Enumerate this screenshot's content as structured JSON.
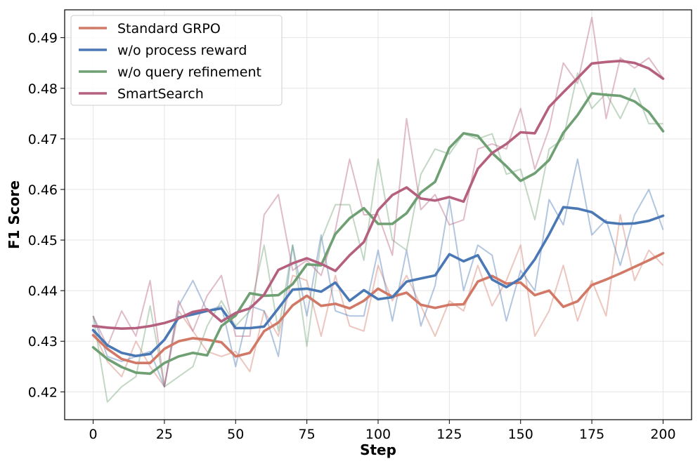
{
  "chart_data": {
    "type": "line",
    "title": "",
    "xlabel": "Step",
    "ylabel": "F1 Score",
    "xlim": [
      -10,
      210
    ],
    "ylim": [
      0.4145,
      0.4955
    ],
    "xticks": [
      0,
      25,
      50,
      75,
      100,
      125,
      150,
      175,
      200
    ],
    "yticks": [
      0.42,
      0.43,
      0.44,
      0.45,
      0.46,
      0.47,
      0.48,
      0.49
    ],
    "ytick_labels": [
      "0.42",
      "0.43",
      "0.44",
      "0.45",
      "0.46",
      "0.47",
      "0.48",
      "0.49"
    ],
    "grid": true,
    "legend_position": "top-left",
    "x": [
      0,
      5,
      10,
      15,
      20,
      25,
      30,
      35,
      40,
      45,
      50,
      55,
      60,
      65,
      70,
      75,
      80,
      85,
      90,
      95,
      100,
      105,
      110,
      115,
      120,
      125,
      130,
      135,
      140,
      145,
      150,
      155,
      160,
      165,
      170,
      175,
      180,
      185,
      190,
      195,
      200
    ],
    "series": [
      {
        "name": "Standard GRPO",
        "color": "#d17866",
        "raw": [
          0.432,
          0.426,
          0.423,
          0.43,
          0.425,
          0.421,
          0.436,
          0.432,
          0.428,
          0.427,
          0.428,
          0.424,
          0.436,
          0.431,
          0.443,
          0.442,
          0.431,
          0.443,
          0.433,
          0.432,
          0.445,
          0.438,
          0.443,
          0.437,
          0.431,
          0.438,
          0.436,
          0.445,
          0.437,
          0.442,
          0.449,
          0.431,
          0.436,
          0.445,
          0.434,
          0.442,
          0.435,
          0.455,
          0.442,
          0.448,
          0.445
        ],
        "smooth": [
          0.4312,
          0.4285,
          0.4265,
          0.4257,
          0.4257,
          0.4285,
          0.43,
          0.4306,
          0.4303,
          0.4298,
          0.427,
          0.4277,
          0.432,
          0.4337,
          0.4371,
          0.439,
          0.437,
          0.4374,
          0.4365,
          0.438,
          0.4404,
          0.4388,
          0.4396,
          0.4372,
          0.4366,
          0.4372,
          0.4373,
          0.4418,
          0.4429,
          0.4414,
          0.4416,
          0.4391,
          0.44,
          0.4368,
          0.4379,
          0.4411,
          0.4422,
          0.4434,
          0.4447,
          0.446,
          0.4474
        ]
      },
      {
        "name": "w/o process reward",
        "color": "#4a78b5",
        "raw": [
          0.435,
          0.427,
          0.426,
          0.427,
          0.428,
          0.421,
          0.437,
          0.442,
          0.436,
          0.437,
          0.425,
          0.437,
          0.436,
          0.427,
          0.449,
          0.435,
          0.451,
          0.436,
          0.435,
          0.435,
          0.448,
          0.434,
          0.448,
          0.433,
          0.441,
          0.458,
          0.44,
          0.449,
          0.447,
          0.434,
          0.444,
          0.44,
          0.458,
          0.453,
          0.466,
          0.451,
          0.454,
          0.445,
          0.455,
          0.46,
          0.452
        ],
        "smooth": [
          0.4322,
          0.4292,
          0.4277,
          0.4271,
          0.4275,
          0.4303,
          0.4347,
          0.4353,
          0.436,
          0.4365,
          0.4326,
          0.4326,
          0.4329,
          0.4365,
          0.4402,
          0.4404,
          0.4398,
          0.4416,
          0.438,
          0.4401,
          0.4383,
          0.4387,
          0.4418,
          0.4424,
          0.443,
          0.4472,
          0.4458,
          0.447,
          0.4422,
          0.4407,
          0.4424,
          0.4462,
          0.4511,
          0.4565,
          0.4562,
          0.4555,
          0.4535,
          0.4532,
          0.4533,
          0.4538,
          0.4548
        ]
      },
      {
        "name": "w/o query refinement",
        "color": "#6ea073",
        "raw": [
          0.435,
          0.418,
          0.421,
          0.423,
          0.437,
          0.421,
          0.423,
          0.425,
          0.433,
          0.438,
          0.433,
          0.436,
          0.449,
          0.432,
          0.449,
          0.429,
          0.45,
          0.457,
          0.457,
          0.446,
          0.466,
          0.45,
          0.448,
          0.463,
          0.468,
          0.467,
          0.471,
          0.47,
          0.471,
          0.463,
          0.464,
          0.454,
          0.468,
          0.47,
          0.483,
          0.476,
          0.479,
          0.474,
          0.48,
          0.473,
          0.473
        ],
        "smooth": [
          0.4288,
          0.4265,
          0.4249,
          0.4238,
          0.4236,
          0.4257,
          0.427,
          0.4277,
          0.4272,
          0.433,
          0.4351,
          0.4395,
          0.439,
          0.4391,
          0.4413,
          0.4452,
          0.445,
          0.4512,
          0.4543,
          0.4563,
          0.4532,
          0.4532,
          0.4553,
          0.4594,
          0.4615,
          0.4682,
          0.4711,
          0.4706,
          0.4672,
          0.4646,
          0.4617,
          0.4632,
          0.4658,
          0.4712,
          0.4747,
          0.479,
          0.4787,
          0.4785,
          0.4774,
          0.4753,
          0.4715
        ]
      },
      {
        "name": "SmartSearch",
        "color": "#b4607e",
        "raw": [
          0.435,
          0.429,
          0.436,
          0.431,
          0.442,
          0.421,
          0.438,
          0.432,
          0.439,
          0.443,
          0.431,
          0.431,
          0.455,
          0.459,
          0.444,
          0.446,
          0.443,
          0.452,
          0.466,
          0.455,
          0.455,
          0.447,
          0.474,
          0.456,
          0.459,
          0.453,
          0.454,
          0.468,
          0.469,
          0.468,
          0.476,
          0.464,
          0.472,
          0.485,
          0.481,
          0.494,
          0.474,
          0.486,
          0.484,
          0.486,
          0.482
        ],
        "smooth": [
          0.433,
          0.4327,
          0.4325,
          0.4326,
          0.433,
          0.4336,
          0.4345,
          0.4358,
          0.4363,
          0.4339,
          0.4356,
          0.4365,
          0.4392,
          0.4441,
          0.4454,
          0.4464,
          0.4453,
          0.4439,
          0.447,
          0.4496,
          0.4559,
          0.4589,
          0.4604,
          0.4582,
          0.4578,
          0.4585,
          0.4576,
          0.4641,
          0.4672,
          0.469,
          0.4713,
          0.4711,
          0.4763,
          0.4792,
          0.482,
          0.4849,
          0.4852,
          0.4854,
          0.485,
          0.4839,
          0.4819
        ]
      }
    ]
  }
}
